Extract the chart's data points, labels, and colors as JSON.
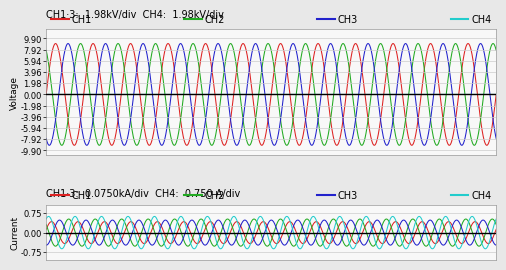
{
  "title_voltage": "CH1·3:  1.98kV/div  CH4:  1.98kV/div",
  "title_current": "CH1·3:  0.0750kA/div  CH4:  0.750 A/div",
  "legend_labels": [
    "CH1",
    "CH2",
    "CH3",
    "CH4"
  ],
  "legend_colors": [
    "#dd2222",
    "#22aa22",
    "#2222cc",
    "#22cccc"
  ],
  "voltage_yticks": [
    -9.9,
    -7.92,
    -5.94,
    -3.96,
    -1.98,
    0.0,
    1.98,
    3.96,
    5.94,
    7.92,
    9.9
  ],
  "voltage_ylim": [
    -10.8,
    11.5
  ],
  "current_yticks": [
    -0.75,
    0.0,
    0.75
  ],
  "current_ylim": [
    -1.05,
    1.05
  ],
  "voltage_amplitude": 9.0,
  "current_amplitudes": [
    0.42,
    0.52,
    0.48,
    0.62
  ],
  "num_cycles_voltage": 12,
  "num_cycles_current": 17,
  "phase_shifts_voltage": [
    0.0,
    2.094395,
    -2.094395
  ],
  "phase_shifts_current": [
    0.3,
    2.5,
    -1.6,
    1.0
  ],
  "ylabel_voltage": "Voltage",
  "ylabel_current": "Current",
  "bg_color": "#f8f8f8",
  "grid_color": "#cccccc",
  "zero_line_color": "#000000",
  "title_fontsize": 7.0,
  "tick_fontsize": 6.0,
  "ylabel_fontsize": 6.5,
  "legend_fontsize": 7.0,
  "fig_bg": "#e8e8e8"
}
